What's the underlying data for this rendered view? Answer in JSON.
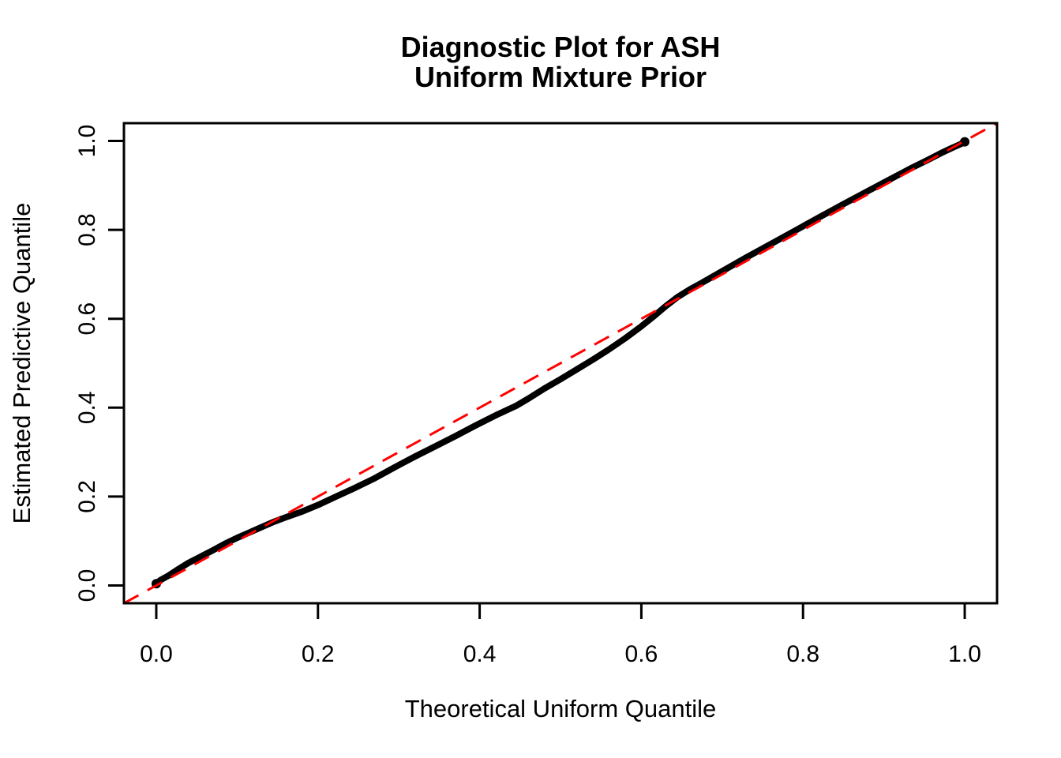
{
  "chart_data": {
    "type": "scatter",
    "subtype": "qq-plot",
    "title_lines": [
      "Diagnostic Plot for ASH",
      "Uniform Mixture Prior"
    ],
    "xlabel": "Theoretical Uniform Quantile",
    "ylabel": "Estimated Predictive Quantile",
    "xlim": [
      -0.04,
      1.04
    ],
    "ylim": [
      -0.04,
      1.04
    ],
    "grid": false,
    "legend": null,
    "x_ticks": {
      "values": [
        0.0,
        0.2,
        0.4,
        0.6,
        0.8,
        1.0
      ],
      "labels": [
        "0.0",
        "0.2",
        "0.4",
        "0.6",
        "0.8",
        "1.0"
      ]
    },
    "y_ticks": {
      "values": [
        0.0,
        0.2,
        0.4,
        0.6,
        0.8,
        1.0
      ],
      "labels": [
        "0.0",
        "0.2",
        "0.4",
        "0.6",
        "0.8",
        "1.0"
      ]
    },
    "series": [
      {
        "name": "estimated-predictive-quantiles",
        "marker": "filled-circle-band",
        "color": "#000000",
        "points": [
          [
            0.0,
            0.004
          ],
          [
            0.005,
            0.012
          ],
          [
            0.015,
            0.022
          ],
          [
            0.025,
            0.034
          ],
          [
            0.04,
            0.051
          ],
          [
            0.055,
            0.065
          ],
          [
            0.07,
            0.079
          ],
          [
            0.085,
            0.094
          ],
          [
            0.1,
            0.107
          ],
          [
            0.115,
            0.119
          ],
          [
            0.13,
            0.131
          ],
          [
            0.145,
            0.143
          ],
          [
            0.16,
            0.153
          ],
          [
            0.18,
            0.166
          ],
          [
            0.2,
            0.181
          ],
          [
            0.22,
            0.198
          ],
          [
            0.245,
            0.219
          ],
          [
            0.27,
            0.241
          ],
          [
            0.295,
            0.266
          ],
          [
            0.32,
            0.29
          ],
          [
            0.345,
            0.313
          ],
          [
            0.37,
            0.336
          ],
          [
            0.395,
            0.36
          ],
          [
            0.42,
            0.383
          ],
          [
            0.445,
            0.404
          ],
          [
            0.46,
            0.42
          ],
          [
            0.48,
            0.443
          ],
          [
            0.5,
            0.464
          ],
          [
            0.52,
            0.486
          ],
          [
            0.54,
            0.508
          ],
          [
            0.56,
            0.531
          ],
          [
            0.58,
            0.556
          ],
          [
            0.6,
            0.583
          ],
          [
            0.615,
            0.605
          ],
          [
            0.63,
            0.628
          ],
          [
            0.645,
            0.649
          ],
          [
            0.66,
            0.666
          ],
          [
            0.675,
            0.681
          ],
          [
            0.7,
            0.707
          ],
          [
            0.73,
            0.738
          ],
          [
            0.76,
            0.768
          ],
          [
            0.79,
            0.798
          ],
          [
            0.82,
            0.828
          ],
          [
            0.85,
            0.858
          ],
          [
            0.88,
            0.887
          ],
          [
            0.91,
            0.916
          ],
          [
            0.935,
            0.94
          ],
          [
            0.955,
            0.958
          ],
          [
            0.97,
            0.972
          ],
          [
            0.985,
            0.985
          ],
          [
            0.995,
            0.993
          ],
          [
            1.0,
            0.998
          ]
        ]
      }
    ],
    "reference_line": {
      "name": "identity-line",
      "equation": "y = x",
      "color": "#FF0000",
      "style": "dashed"
    },
    "colors": {
      "curve": "#000000",
      "reference": "#FF0000",
      "axis": "#000000",
      "background": "#FFFFFF"
    }
  }
}
